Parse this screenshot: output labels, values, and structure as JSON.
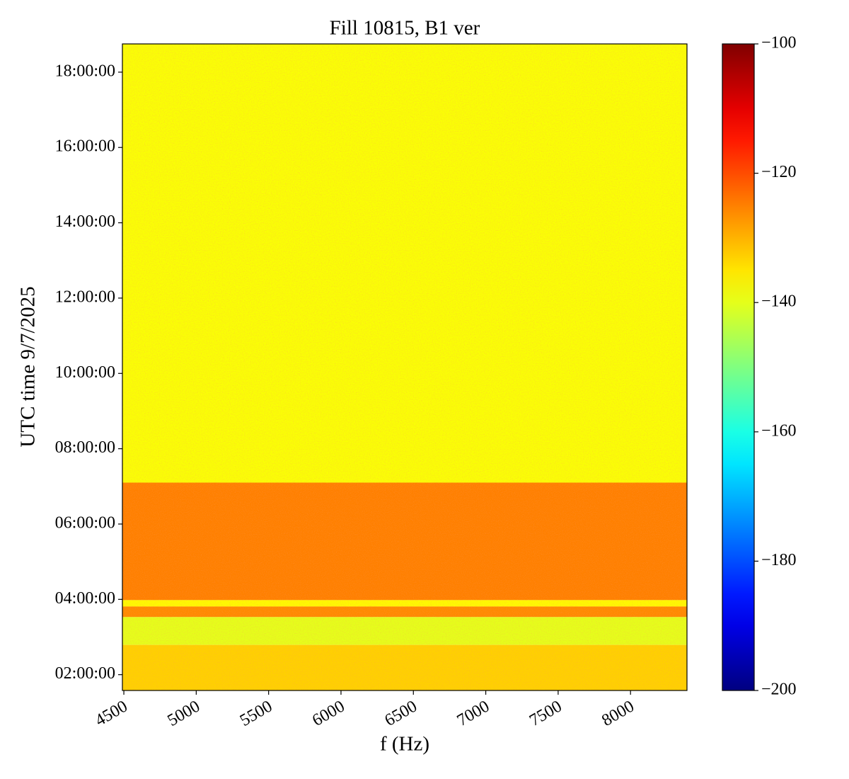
{
  "chart_data": {
    "type": "spectrogram",
    "title": "Fill 10815, B1 ver",
    "xlabel": "f (Hz)",
    "ylabel": "UTC time 9/7/2025",
    "xlim": [
      4490,
      8390
    ],
    "xticks": [
      4500,
      5000,
      5500,
      6000,
      6500,
      7000,
      7500,
      8000
    ],
    "ylim": [
      1.58,
      18.75
    ],
    "yticks": [
      {
        "value": 2,
        "label": "02:00:00"
      },
      {
        "value": 4,
        "label": "04:00:00"
      },
      {
        "value": 6,
        "label": "06:00:00"
      },
      {
        "value": 8,
        "label": "08:00:00"
      },
      {
        "value": 10,
        "label": "10:00:00"
      },
      {
        "value": 12,
        "label": "12:00:00"
      },
      {
        "value": 14,
        "label": "14:00:00"
      },
      {
        "value": 16,
        "label": "16:00:00"
      },
      {
        "value": 18,
        "label": "18:00:00"
      }
    ],
    "bands": [
      {
        "y0": 7.1,
        "y1": 18.75,
        "value": -138
      },
      {
        "y0": 3.98,
        "y1": 7.1,
        "value": -125
      },
      {
        "y0": 3.81,
        "y1": 3.98,
        "value": -137
      },
      {
        "y0": 3.53,
        "y1": 3.81,
        "value": -126
      },
      {
        "y0": 2.79,
        "y1": 3.53,
        "value": -140
      },
      {
        "y0": 1.58,
        "y1": 2.79,
        "value": -133
      }
    ],
    "colorbar": {
      "colormap": "jet",
      "lim": [
        -200,
        -100
      ],
      "ticks": [
        {
          "value": -100,
          "label": "−100"
        },
        {
          "value": -120,
          "label": "−120"
        },
        {
          "value": -140,
          "label": "−140"
        },
        {
          "value": -160,
          "label": "−160"
        },
        {
          "value": -180,
          "label": "−180"
        },
        {
          "value": -200,
          "label": "−200"
        }
      ]
    }
  }
}
